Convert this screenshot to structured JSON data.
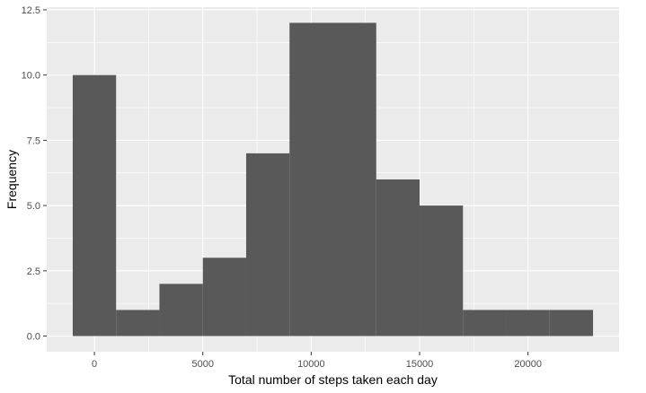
{
  "chart_data": {
    "type": "bar",
    "xlabel": "Total number of steps taken each day",
    "ylabel": "Frequency",
    "xlim": [
      -2200,
      24200
    ],
    "ylim": [
      -0.6,
      12.6
    ],
    "x_ticks": [
      0,
      5000,
      10000,
      15000,
      20000
    ],
    "x_tick_labels": [
      "0",
      "5000",
      "10000",
      "15000",
      "20000"
    ],
    "y_ticks": [
      0,
      2.5,
      5,
      7.5,
      10,
      12.5
    ],
    "y_tick_labels": [
      "0.0",
      "2.5",
      "5.0",
      "7.5",
      "10.0",
      "12.5"
    ],
    "grid": true,
    "legend": "none",
    "colors": {
      "panel": "#ebebeb",
      "grid": "#ffffff",
      "bar": "#595959"
    },
    "bins": [
      {
        "x0": -1000,
        "x1": 1000,
        "count": 10
      },
      {
        "x0": 1000,
        "x1": 3000,
        "count": 1
      },
      {
        "x0": 3000,
        "x1": 5000,
        "count": 2
      },
      {
        "x0": 5000,
        "x1": 7000,
        "count": 3
      },
      {
        "x0": 7000,
        "x1": 9000,
        "count": 7
      },
      {
        "x0": 9000,
        "x1": 11000,
        "count": 12
      },
      {
        "x0": 11000,
        "x1": 13000,
        "count": 12
      },
      {
        "x0": 13000,
        "x1": 15000,
        "count": 6
      },
      {
        "x0": 15000,
        "x1": 17000,
        "count": 5
      },
      {
        "x0": 17000,
        "x1": 19000,
        "count": 1
      },
      {
        "x0": 19000,
        "x1": 21000,
        "count": 1
      },
      {
        "x0": 21000,
        "x1": 23000,
        "count": 1
      }
    ]
  }
}
